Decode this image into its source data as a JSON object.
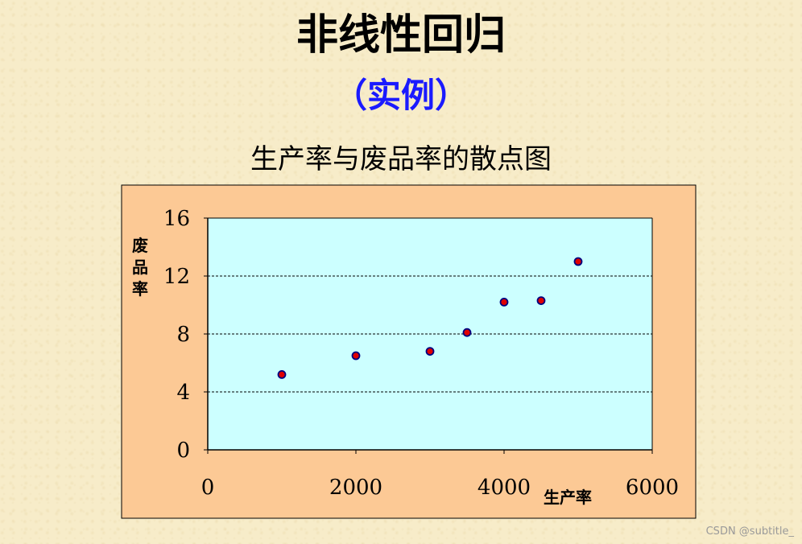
{
  "title": "非线性回归",
  "subtitle": "（实例）",
  "caption": "生产率与废品率的散点图",
  "watermark": "CSDN @subtitle_",
  "colors": {
    "frame": "#fcc995",
    "plot_bg": "#ccffff",
    "point_fill": "#e00000",
    "point_stroke": "#000080",
    "subtitle": "#1a1aff"
  },
  "chart_data": {
    "type": "scatter",
    "title": "生产率与废品率的散点图",
    "xlabel": "生产率",
    "ylabel": "废品率",
    "xlim": [
      0,
      6000
    ],
    "ylim": [
      0,
      16
    ],
    "xticks": [
      0,
      2000,
      4000,
      6000
    ],
    "yticks": [
      0,
      4,
      8,
      12,
      16
    ],
    "grid": "horizontal dashed",
    "legend": "none",
    "points": [
      {
        "x": 1000,
        "y": 5.2
      },
      {
        "x": 2000,
        "y": 6.5
      },
      {
        "x": 3000,
        "y": 6.8
      },
      {
        "x": 3500,
        "y": 8.1
      },
      {
        "x": 4000,
        "y": 10.2
      },
      {
        "x": 4500,
        "y": 10.3
      },
      {
        "x": 5000,
        "y": 13.0
      }
    ]
  }
}
